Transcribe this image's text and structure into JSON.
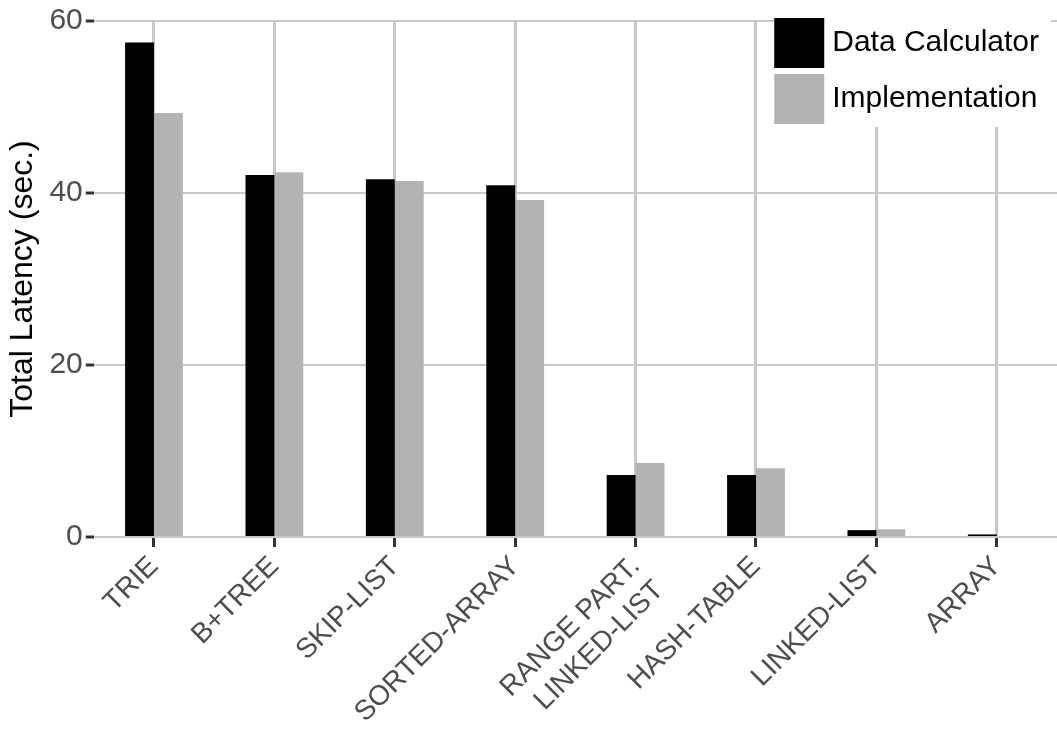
{
  "chart_data": {
    "type": "bar",
    "ylabel": "Total Latency (sec.)",
    "categories": [
      "TRIE",
      "B+TREE",
      "SKIP-LIST",
      "SORTED-ARRAY",
      "RANGE PART.\nLINKED-LIST",
      "HASH-TABLE",
      "LINKED-LIST",
      "ARRAY"
    ],
    "series": [
      {
        "name": "Data Calculator",
        "color": "#000000",
        "values": [
          57.5,
          42.1,
          41.6,
          40.9,
          7.2,
          7.2,
          0.8,
          0.3
        ]
      },
      {
        "name": "Implementation",
        "color": "#b3b3b3",
        "values": [
          49.3,
          42.4,
          41.4,
          39.2,
          8.6,
          8.0,
          0.9,
          null
        ]
      }
    ],
    "ylim": [
      0,
      60
    ],
    "yticks": [
      0,
      20,
      40,
      60
    ],
    "grid": true,
    "legend": "top right"
  }
}
